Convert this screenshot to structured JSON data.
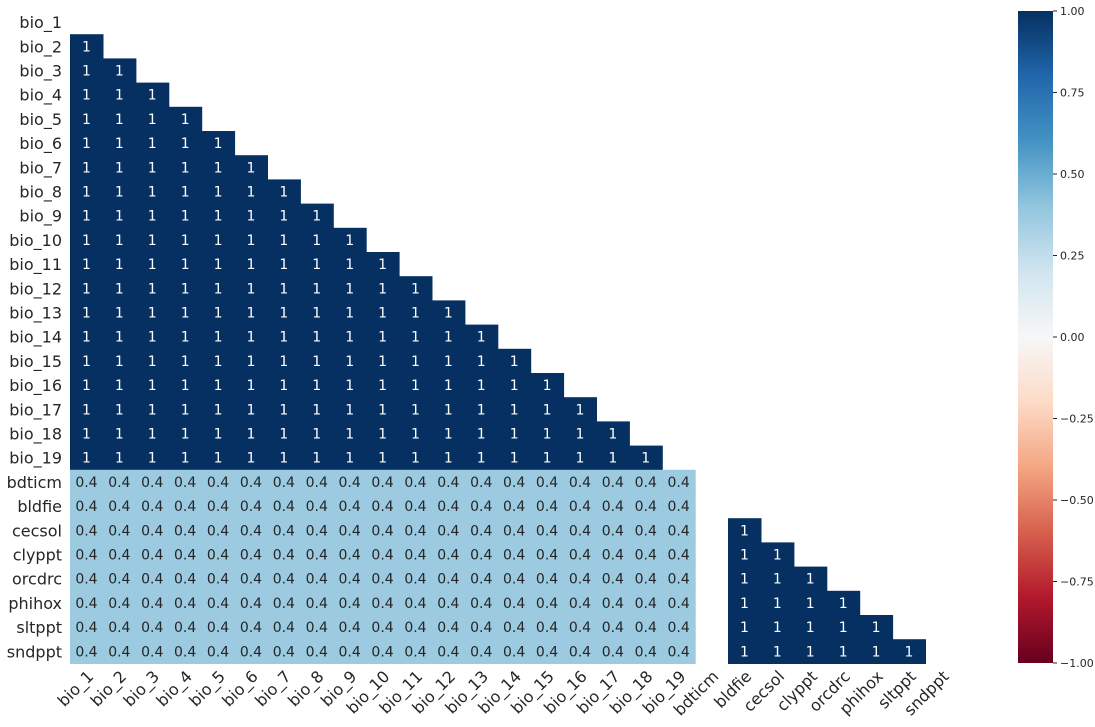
{
  "chart_data": {
    "type": "heatmap",
    "title": "",
    "xlabel": "",
    "ylabel": "",
    "variables": [
      "bio_1",
      "bio_2",
      "bio_3",
      "bio_4",
      "bio_5",
      "bio_6",
      "bio_7",
      "bio_8",
      "bio_9",
      "bio_10",
      "bio_11",
      "bio_12",
      "bio_13",
      "bio_14",
      "bio_15",
      "bio_16",
      "bio_17",
      "bio_18",
      "bio_19",
      "bdticm",
      "bldfie",
      "cecsol",
      "clyppt",
      "orcdrc",
      "phihox",
      "sltppt",
      "sndppt"
    ],
    "groups": [
      {
        "members": [
          "bio_1",
          "bio_2",
          "bio_3",
          "bio_4",
          "bio_5",
          "bio_6",
          "bio_7",
          "bio_8",
          "bio_9",
          "bio_10",
          "bio_11",
          "bio_12",
          "bio_13",
          "bio_14",
          "bio_15",
          "bio_16",
          "bio_17",
          "bio_18",
          "bio_19"
        ],
        "within_value": 1
      },
      {
        "members": [
          "bdticm"
        ],
        "within_value": 1
      },
      {
        "members": [
          "bldfie",
          "cecsol",
          "clyppt",
          "orcdrc",
          "phihox",
          "sltppt",
          "sndppt"
        ],
        "within_value": 1
      }
    ],
    "between_group_values": [
      {
        "groups": [
          0,
          1
        ],
        "value": 0.4
      },
      {
        "groups": [
          0,
          2
        ],
        "value": 0.4
      }
    ],
    "between_group_labels": [
      {
        "groups": [
          0,
          1
        ],
        "label": "0.4"
      },
      {
        "groups": [
          0,
          2
        ],
        "label": "0.4"
      }
    ],
    "within_label": "1",
    "mask": "upper-triangle-and-diagonal",
    "colorbar": {
      "range": [
        -1.0,
        1.0
      ],
      "ticks": [
        1.0,
        0.75,
        0.5,
        0.25,
        0.0,
        -0.25,
        -0.5,
        -0.75,
        -1.0
      ],
      "tick_labels": [
        "1.00",
        "0.75",
        "0.50",
        "0.25",
        "0.00",
        "−0.25",
        "−0.50",
        "−0.75",
        "−1.00"
      ],
      "colormap": "RdBu"
    },
    "colors": {
      "one": "#053061",
      "point_four": "#9bcae1"
    }
  }
}
